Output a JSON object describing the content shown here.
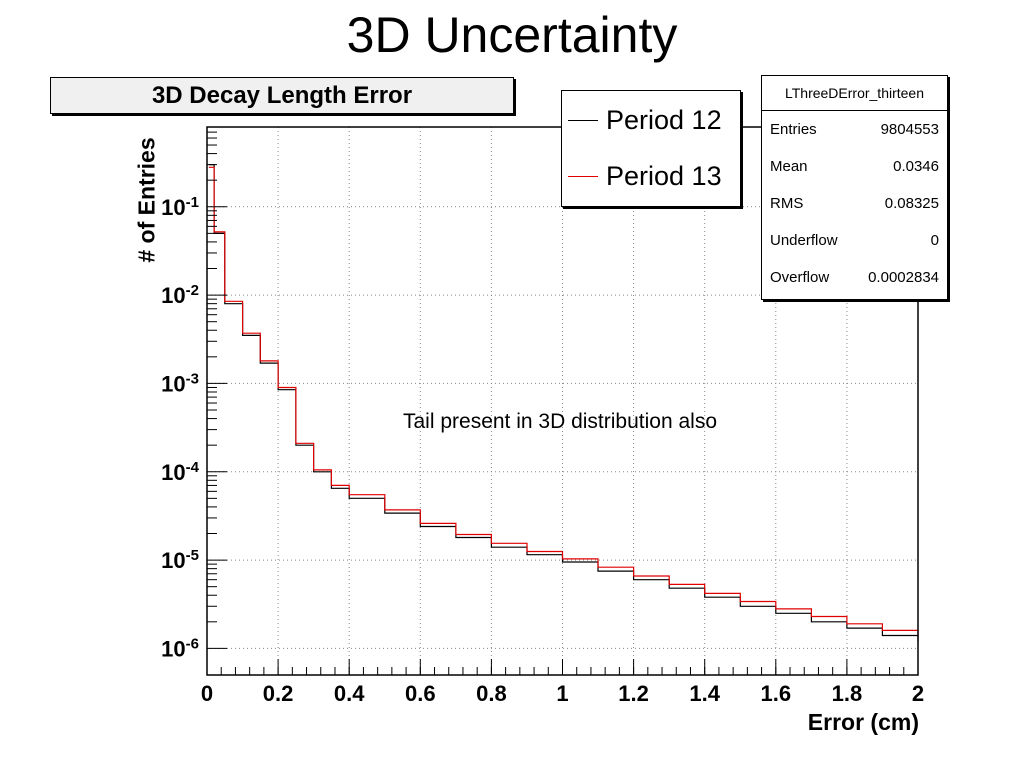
{
  "slide": {
    "title": "3D Uncertainty"
  },
  "histogram": {
    "title": "3D Decay Length Error"
  },
  "legend": {
    "entries": [
      {
        "label": "Period 12",
        "color": "#000000"
      },
      {
        "label": "Period 13",
        "color": "#e00000"
      }
    ]
  },
  "stats": {
    "name": "LThreeDError_thirteen",
    "rows": [
      {
        "key": "Entries",
        "value": "9804553"
      },
      {
        "key": "Mean",
        "value": "0.0346"
      },
      {
        "key": "RMS",
        "value": "0.08325"
      },
      {
        "key": "Underflow",
        "value": "0"
      },
      {
        "key": "Overflow",
        "value": "0.0002834"
      }
    ]
  },
  "annotation": "Tail present in 3D distribution also",
  "chart_data": {
    "type": "line",
    "title": "3D Decay Length Error",
    "xlabel": "Error (cm)",
    "ylabel": "# of Entries",
    "xlim": [
      0,
      2
    ],
    "ylim": [
      5e-07,
      0.8
    ],
    "yscale": "log",
    "grid": true,
    "legend_position": "top-right",
    "x_ticks": [
      "0",
      "0.2",
      "0.4",
      "0.6",
      "0.8",
      "1",
      "1.2",
      "1.4",
      "1.6",
      "1.8",
      "2"
    ],
    "x_tick_values": [
      0,
      0.2,
      0.4,
      0.6,
      0.8,
      1.0,
      1.2,
      1.4,
      1.6,
      1.8,
      2.0
    ],
    "y_ticks": [
      {
        "value": 0.1,
        "base": "10",
        "exp": "-1"
      },
      {
        "value": 0.01,
        "base": "10",
        "exp": "-2"
      },
      {
        "value": 0.001,
        "base": "10",
        "exp": "-3"
      },
      {
        "value": 0.0001,
        "base": "10",
        "exp": "-4"
      },
      {
        "value": 1e-05,
        "base": "10",
        "exp": "-5"
      },
      {
        "value": 1e-06,
        "base": "10",
        "exp": "-6"
      }
    ],
    "series": [
      {
        "name": "Period 12",
        "color": "#000000",
        "x": [
          0.005,
          0.02,
          0.05,
          0.1,
          0.15,
          0.2,
          0.25,
          0.3,
          0.35,
          0.4,
          0.5,
          0.6,
          0.7,
          0.8,
          0.9,
          1.0,
          1.1,
          1.2,
          1.3,
          1.4,
          1.5,
          1.6,
          1.7,
          1.8,
          1.9,
          2.0
        ],
        "y": [
          0.3,
          0.05,
          0.008,
          0.0035,
          0.0017,
          0.00085,
          0.0002,
          0.0001,
          6.5e-05,
          5e-05,
          3.4e-05,
          2.4e-05,
          1.8e-05,
          1.4e-05,
          1.15e-05,
          9.5e-06,
          7.5e-06,
          6e-06,
          4.8e-06,
          3.8e-06,
          3e-06,
          2.5e-06,
          2e-06,
          1.7e-06,
          1.4e-06,
          1.2e-06
        ]
      },
      {
        "name": "Period 13",
        "color": "#e00000",
        "x": [
          0.005,
          0.02,
          0.05,
          0.1,
          0.15,
          0.2,
          0.25,
          0.3,
          0.35,
          0.4,
          0.5,
          0.6,
          0.7,
          0.8,
          0.9,
          1.0,
          1.1,
          1.2,
          1.3,
          1.4,
          1.5,
          1.6,
          1.7,
          1.8,
          1.9,
          2.0
        ],
        "y": [
          0.28,
          0.052,
          0.0085,
          0.0037,
          0.0018,
          0.0009,
          0.00021,
          0.000105,
          7e-05,
          5.5e-05,
          3.7e-05,
          2.6e-05,
          1.95e-05,
          1.55e-05,
          1.25e-05,
          1.03e-05,
          8.3e-06,
          6.6e-06,
          5.3e-06,
          4.2e-06,
          3.4e-06,
          2.8e-06,
          2.3e-06,
          1.9e-06,
          1.6e-06,
          1.4e-06
        ]
      }
    ]
  }
}
